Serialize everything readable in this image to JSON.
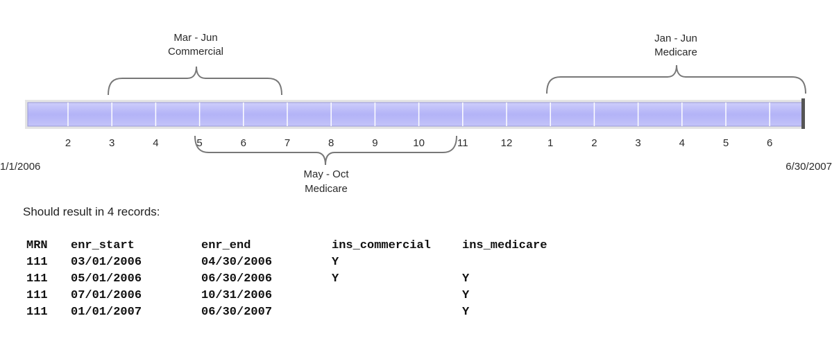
{
  "timeline": {
    "start_date": "1/1/2006",
    "end_date": "6/30/2007",
    "months": [
      "2",
      "3",
      "4",
      "5",
      "6",
      "7",
      "8",
      "9",
      "10",
      "11",
      "12",
      "1",
      "2",
      "3",
      "4",
      "5",
      "6"
    ],
    "bar_color": "#b3b3f7",
    "brackets": {
      "mar_jun": {
        "line1": "Mar - Jun",
        "line2": "Commercial"
      },
      "may_oct": {
        "line1": "May - Oct",
        "line2": "Medicare"
      },
      "jan_jun": {
        "line1": "Jan - Jun",
        "line2": "Medicare"
      }
    }
  },
  "note": "Should result in 4 records:",
  "table": {
    "headers": [
      "MRN",
      "enr_start",
      "enr_end",
      "ins_commercial",
      "ins_medicare"
    ],
    "rows": [
      [
        "111",
        "03/01/2006",
        "04/30/2006",
        "Y",
        ""
      ],
      [
        "111",
        "05/01/2006",
        "06/30/2006",
        "Y",
        "Y"
      ],
      [
        "111",
        "07/01/2006",
        "10/31/2006",
        "",
        "Y"
      ],
      [
        "111",
        "01/01/2007",
        "06/30/2007",
        "",
        "Y"
      ]
    ]
  }
}
